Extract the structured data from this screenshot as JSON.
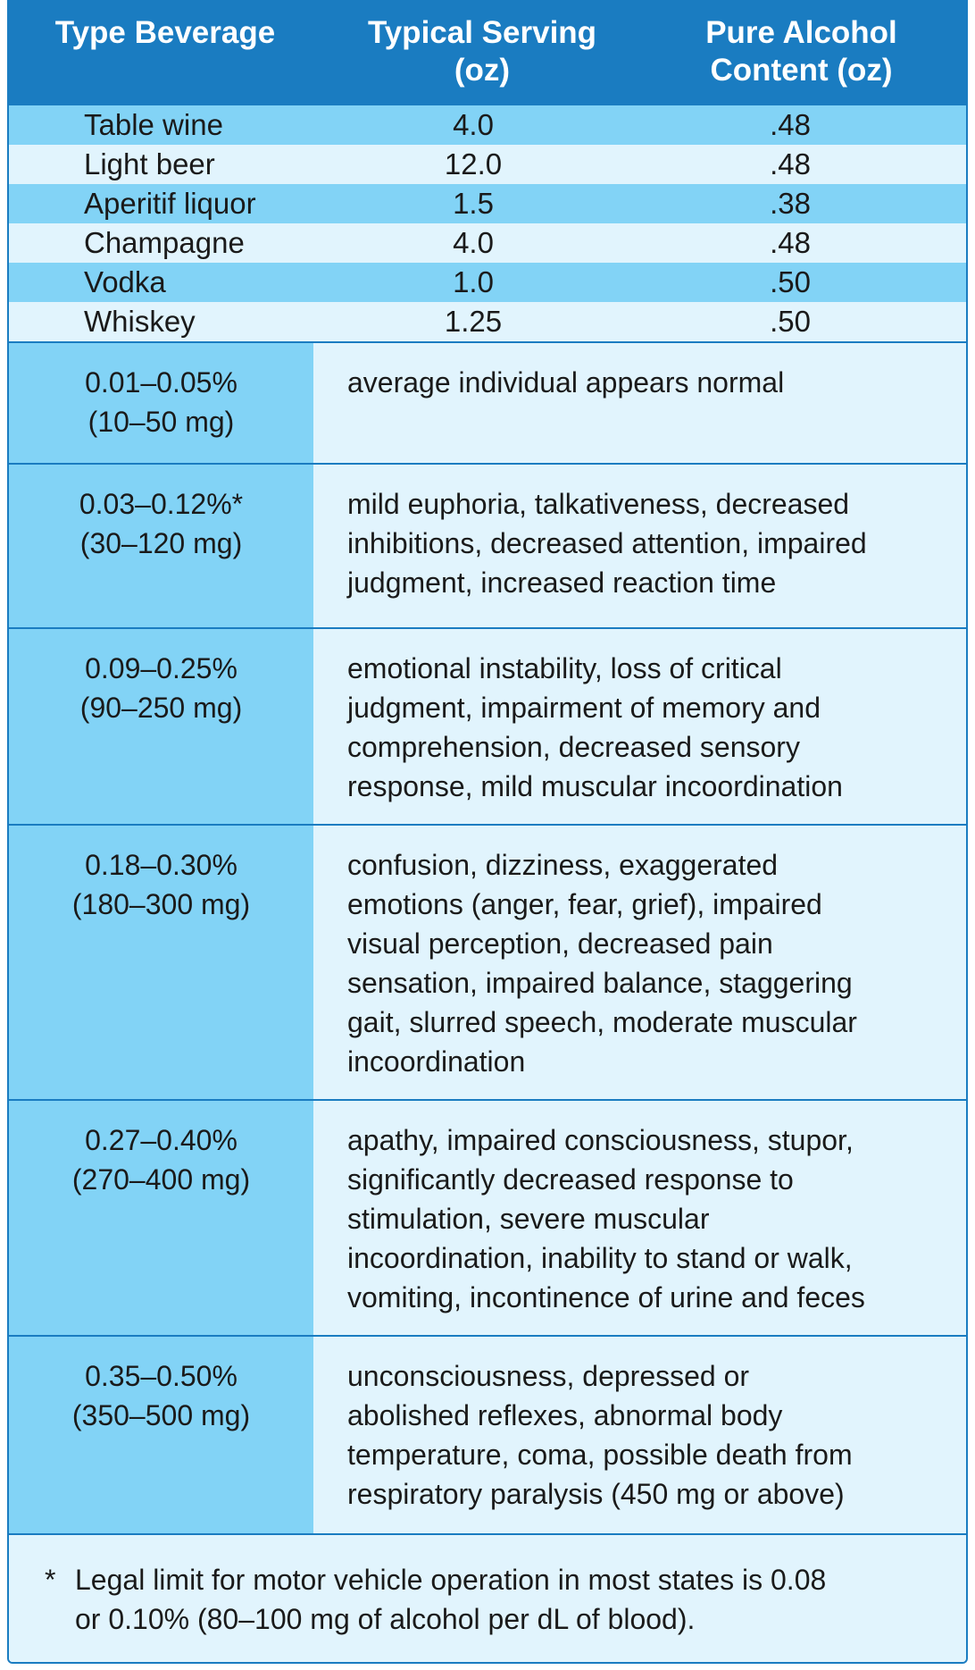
{
  "header": {
    "type_beverage": "Type Beverage",
    "typical_serving_line1": "Typical Serving",
    "typical_serving_line2": "(oz)",
    "pure_alcohol_line1": "Pure Alcohol",
    "pure_alcohol_line2": "Content (oz)"
  },
  "beverages": [
    {
      "name": "Table wine",
      "serving": "4.0",
      "alcohol": ".48"
    },
    {
      "name": "Light beer",
      "serving": "12.0",
      "alcohol": ".48"
    },
    {
      "name": "Aperitif liquor",
      "serving": "1.5",
      "alcohol": ".38"
    },
    {
      "name": "Champagne",
      "serving": "4.0",
      "alcohol": ".48"
    },
    {
      "name": "Vodka",
      "serving": "1.0",
      "alcohol": ".50"
    },
    {
      "name": "Whiskey",
      "serving": "1.25",
      "alcohol": ".50"
    }
  ],
  "bac_levels": [
    {
      "percent": "0.01–0.05%",
      "mg": "(10–50 mg)",
      "effects": [
        "average individual appears normal"
      ]
    },
    {
      "percent": "0.03–0.12%*",
      "mg": "(30–120 mg)",
      "effects": [
        "mild euphoria, talkativeness, decreased",
        "inhibitions, decreased attention, impaired",
        "judgment, increased reaction time"
      ]
    },
    {
      "percent": "0.09–0.25%",
      "mg": "(90–250 mg)",
      "effects": [
        "emotional instability, loss of critical",
        "judgment, impairment of memory and",
        "comprehension, decreased sensory",
        "response, mild muscular incoordination"
      ]
    },
    {
      "percent": "0.18–0.30%",
      "mg": "(180–300 mg)",
      "effects": [
        "confusion, dizziness, exaggerated",
        "emotions (anger, fear, grief), impaired",
        "visual perception, decreased pain",
        "sensation, impaired balance, staggering",
        "gait, slurred speech, moderate muscular",
        "incoordination"
      ]
    },
    {
      "percent": "0.27–0.40%",
      "mg": "(270–400 mg)",
      "effects": [
        "apathy, impaired consciousness, stupor,",
        "significantly decreased response to",
        "stimulation, severe muscular",
        "incoordination, inability to stand or walk,",
        "vomiting, incontinence of urine and feces"
      ]
    },
    {
      "percent": "0.35–0.50%",
      "mg": "(350–500 mg)",
      "effects": [
        "unconsciousness, depressed or",
        "abolished reflexes, abnormal body",
        "temperature, coma, possible death from",
        "respiratory paralysis (450 mg or above)"
      ]
    }
  ],
  "footnote": {
    "marker": "*",
    "line1": "Legal limit for motor vehicle operation in most states is 0.08",
    "line2": "or 0.10% (80–100 mg of alcohol per dL of blood)."
  },
  "colors": {
    "header_blue": "#1a7cc1",
    "row_dark": "#82d3f6",
    "row_light": "#e1f4fd"
  }
}
